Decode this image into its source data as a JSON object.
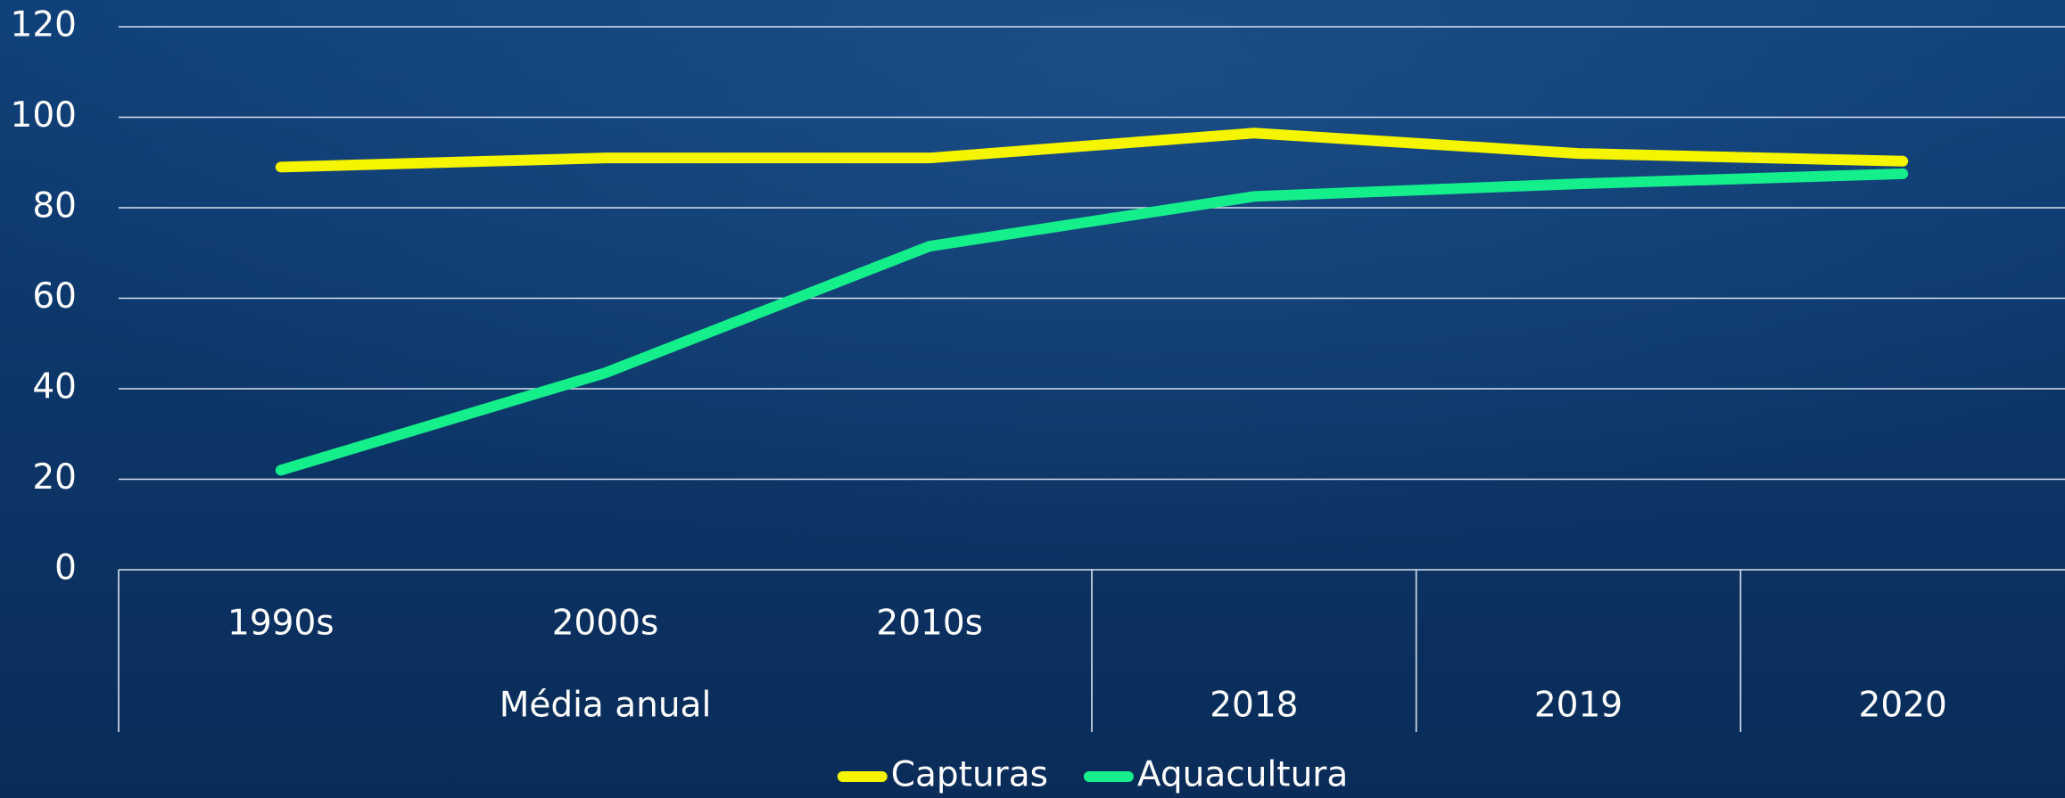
{
  "chart_data": {
    "type": "line",
    "category_groups": [
      {
        "name": "Média anual",
        "categories": [
          "1990s",
          "2000s",
          "2010s"
        ]
      },
      {
        "name": "2018",
        "categories": [
          null
        ]
      },
      {
        "name": "2019",
        "categories": [
          null
        ]
      },
      {
        "name": "2020",
        "categories": [
          null
        ]
      }
    ],
    "series": [
      {
        "name": "Capturas",
        "color": "#f5f500",
        "values": [
          89,
          91,
          91,
          96.5,
          92,
          90.3
        ]
      },
      {
        "name": "Aquacultura",
        "color": "#14ef8c",
        "values": [
          22,
          43.5,
          71.5,
          82.5,
          85.3,
          87.5
        ]
      }
    ],
    "ylim": [
      0,
      120
    ],
    "yticks": [
      0,
      20,
      40,
      60,
      80,
      100,
      120
    ],
    "grid": true,
    "legend": "bottom"
  }
}
